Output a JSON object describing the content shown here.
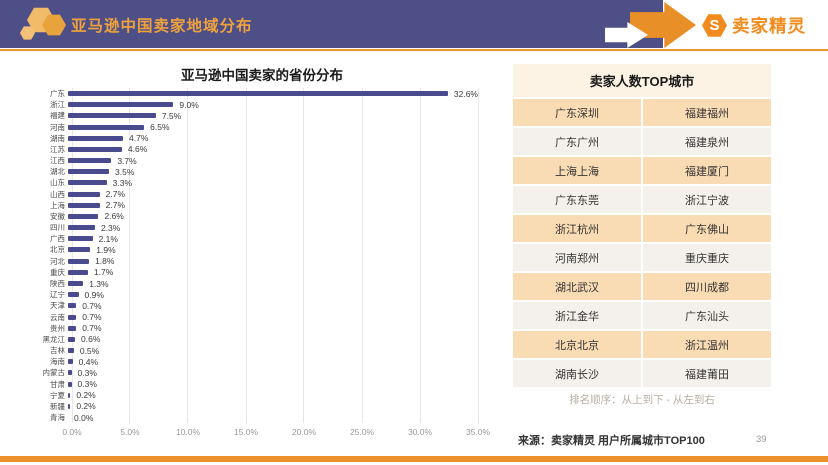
{
  "header": {
    "title": "亚马逊中国卖家地域分布",
    "brand_name": "卖家精灵",
    "brand_initial": "S",
    "colors": {
      "header_bg": "#4F4F87",
      "accent_orange": "#F0922B",
      "brand_orange": "#F28B1D"
    }
  },
  "chart_data": {
    "type": "bar",
    "orientation": "horizontal",
    "title": "亚马逊中国卖家的省份分布",
    "categories": [
      "广东",
      "浙江",
      "福建",
      "河南",
      "湖南",
      "江苏",
      "江西",
      "湖北",
      "山东",
      "山西",
      "上海",
      "安徽",
      "四川",
      "广西",
      "北京",
      "河北",
      "重庆",
      "陕西",
      "辽宁",
      "天津",
      "云南",
      "贵州",
      "黑龙江",
      "吉林",
      "海南",
      "内蒙古",
      "甘肃",
      "宁夏",
      "新疆",
      "青海"
    ],
    "values": [
      32.6,
      9.0,
      7.5,
      6.5,
      4.7,
      4.6,
      3.7,
      3.5,
      3.3,
      2.7,
      2.7,
      2.6,
      2.3,
      2.1,
      1.9,
      1.8,
      1.7,
      1.3,
      0.9,
      0.7,
      0.7,
      0.7,
      0.6,
      0.5,
      0.4,
      0.3,
      0.3,
      0.2,
      0.2,
      0.0
    ],
    "value_suffix": "%",
    "xlim": [
      0,
      35
    ],
    "x_ticks": [
      "0.0%",
      "5.0%",
      "10.0%",
      "15.0%",
      "20.0%",
      "25.0%",
      "30.0%",
      "35.0%"
    ],
    "bar_color": "#4A4A8E",
    "grid": true,
    "legend": "none"
  },
  "city_table": {
    "title": "卖家人数TOP城市",
    "rows": [
      [
        "广东深圳",
        "福建福州"
      ],
      [
        "广东广州",
        "福建泉州"
      ],
      [
        "上海上海",
        "福建厦门"
      ],
      [
        "广东东莞",
        "浙江宁波"
      ],
      [
        "浙江杭州",
        "广东佛山"
      ],
      [
        "河南郑州",
        "重庆重庆"
      ],
      [
        "湖北武汉",
        "四川成都"
      ],
      [
        "浙江金华",
        "广东汕头"
      ],
      [
        "北京北京",
        "浙江温州"
      ],
      [
        "湖南长沙",
        "福建莆田"
      ]
    ],
    "note": "排名顺序：从上到下 - 从左到右"
  },
  "footer": {
    "source": "来源：卖家精灵 用户所属城市TOP100",
    "page_number": "39"
  }
}
